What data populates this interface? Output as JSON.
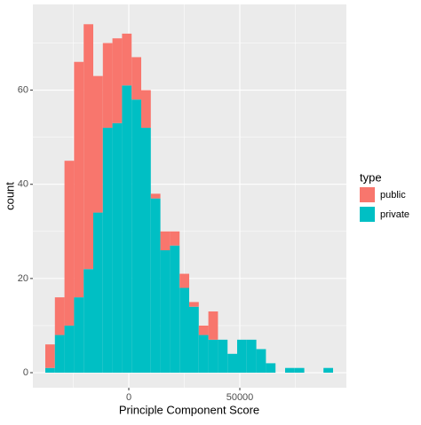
{
  "chart_data": {
    "type": "histogram",
    "x_label": "Principle Component Score",
    "y_label": "count",
    "legend_title": "type",
    "stacked": true,
    "grid": true,
    "bins": [
      -37600,
      -33280,
      -28960,
      -24640,
      -20320,
      -16000,
      -11680,
      -7360,
      -3040,
      1280,
      5600,
      9920,
      14240,
      18560,
      22880,
      27200,
      31520,
      35840,
      40160,
      44480,
      48800,
      53120,
      57440,
      61760,
      66080,
      70400,
      74720,
      79040,
      83360,
      87680,
      92000
    ],
    "series": [
      {
        "name": "public",
        "color": "#F8766D",
        "values": [
          5,
          8,
          35,
          50,
          52,
          29,
          18,
          18,
          11,
          9,
          8,
          1,
          4,
          3,
          3,
          1,
          2,
          6,
          0,
          0,
          0,
          0,
          0,
          0,
          0,
          0,
          0,
          0,
          0,
          0
        ]
      },
      {
        "name": "private",
        "color": "#00BFC4",
        "values": [
          1,
          8,
          10,
          16,
          22,
          34,
          52,
          53,
          61,
          58,
          52,
          37,
          26,
          27,
          18,
          14,
          8,
          7,
          7,
          4,
          7,
          7,
          5,
          2,
          0,
          1,
          1,
          0,
          0,
          1
        ]
      }
    ],
    "xlim": [
      -43200,
      98000
    ],
    "xticks": [
      0,
      50000
    ],
    "ylim": [
      -3.2,
      78.2
    ],
    "yticks": [
      0,
      20,
      40,
      60
    ]
  }
}
